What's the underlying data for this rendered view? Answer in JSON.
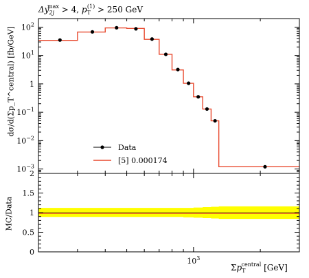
{
  "chart_data": [
    {
      "type": "line",
      "panel": "main",
      "title_parts": {
        "symbol": "Δy",
        "sub": "2j",
        "sup": "max",
        "middle": " > 4, ",
        "pt_symbol": "p",
        "pt_sub": "T",
        "pt_sup": "(1)",
        "tail": " > 250 GeV"
      },
      "ylabel": "dσ/d(Σp_T^central) [fb/GeV]",
      "y_scale": "log",
      "ylim": [
        0.0007,
        200
      ],
      "y_ticks": [
        {
          "value": 100,
          "mantissa": "10",
          "exp": "2"
        },
        {
          "value": 10,
          "mantissa": "10",
          "exp": "1"
        },
        {
          "value": 1,
          "mantissa": "1",
          "exp": ""
        },
        {
          "value": 0.1,
          "mantissa": "10",
          "exp": "−1"
        },
        {
          "value": 0.01,
          "mantissa": "10",
          "exp": "−2"
        },
        {
          "value": 0.001,
          "mantissa": "10",
          "exp": "−3"
        }
      ],
      "x_scale": "log",
      "xlim": [
        200,
        3000
      ],
      "legend": {
        "placement": "lower-left",
        "entries": [
          {
            "label": "Data",
            "kind": "marker"
          },
          {
            "label": "[5] 0.000174",
            "kind": "line"
          }
        ]
      },
      "series": [
        {
          "name": "Data",
          "kind": "points",
          "color": "#000000",
          "x": [
            250,
            350,
            450,
            550,
            650,
            750,
            850,
            950,
            1050,
            1150,
            1250,
            2100
          ],
          "y": [
            35,
            68,
            95,
            87,
            38,
            11,
            3.2,
            1.05,
            0.35,
            0.13,
            0.05,
            0.0012
          ]
        },
        {
          "name": "[5] 0.000174",
          "kind": "step",
          "color": "#e8492e",
          "edges": [
            200,
            300,
            400,
            500,
            600,
            700,
            800,
            900,
            1000,
            1100,
            1200,
            1300,
            3000
          ],
          "values": [
            34,
            67,
            94,
            90,
            37,
            11,
            3.1,
            1.05,
            0.35,
            0.13,
            0.05,
            0.0012
          ]
        }
      ]
    },
    {
      "type": "line",
      "panel": "ratio",
      "ylabel": "MC/Data",
      "xlabel_parts": {
        "prefix": "Σ",
        "symbol": "p",
        "sub": "T",
        "sup": "central",
        "unit": " [GeV]"
      },
      "ylim": [
        0,
        2
      ],
      "y_ticks": [
        "0",
        "0.5",
        "1",
        "1.5",
        "2"
      ],
      "x_ticks": [
        {
          "value": 1000,
          "mantissa": "10",
          "exp": "3"
        }
      ],
      "band": {
        "color": "#ffff00",
        "edges": [
          200,
          300,
          400,
          500,
          600,
          700,
          800,
          900,
          1000,
          1100,
          1200,
          1300,
          3000
        ],
        "low": [
          0.89,
          0.89,
          0.89,
          0.89,
          0.89,
          0.89,
          0.89,
          0.88,
          0.87,
          0.86,
          0.85,
          0.84,
          0.84
        ],
        "high": [
          1.12,
          1.12,
          1.12,
          1.12,
          1.12,
          1.12,
          1.12,
          1.12,
          1.13,
          1.14,
          1.15,
          1.16,
          1.16
        ]
      },
      "ratio_line": {
        "color": "#e8492e",
        "value": 0.98
      }
    }
  ]
}
